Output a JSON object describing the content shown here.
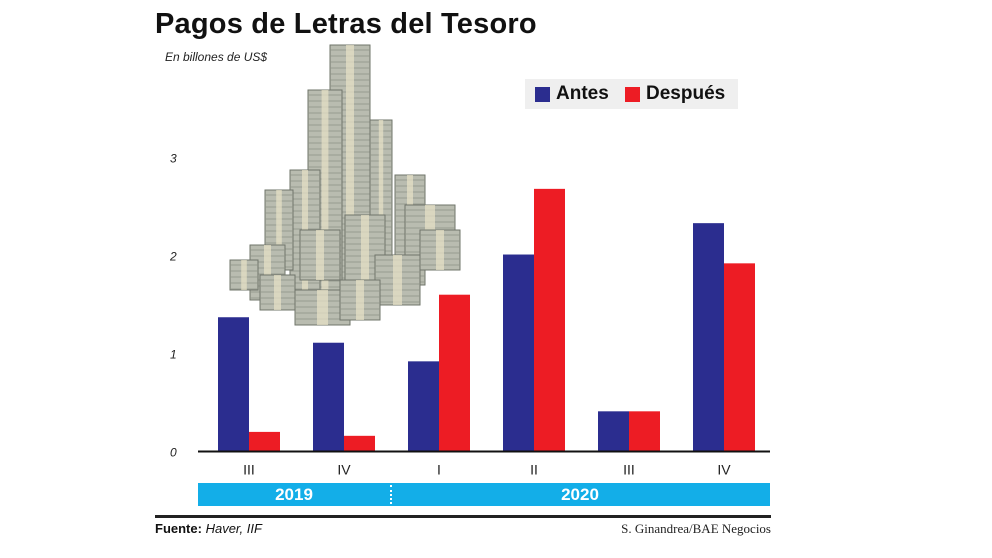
{
  "chart_data": {
    "type": "bar",
    "title": "Pagos de Letras del Tesoro",
    "subtitle": "En billones de US$",
    "categories": [
      "III",
      "IV",
      "I",
      "II",
      "III",
      "IV"
    ],
    "category_groups": [
      {
        "label": "2019",
        "categories": [
          "III",
          "IV"
        ]
      },
      {
        "label": "2020",
        "categories": [
          "I",
          "II",
          "III",
          "IV"
        ]
      }
    ],
    "series": [
      {
        "name": "Antes",
        "color": "#2b2d8f",
        "values": [
          1.37,
          1.11,
          0.92,
          2.01,
          0.41,
          2.33
        ]
      },
      {
        "name": "Después",
        "color": "#ed1c24",
        "values": [
          0.2,
          0.16,
          1.6,
          2.68,
          0.41,
          1.92
        ]
      }
    ],
    "yticks": [
      "0",
      "1",
      "2",
      "3"
    ],
    "ylim": [
      0,
      3.4
    ],
    "grid": false,
    "legend": "top-right",
    "year_band_color": "#13aee8"
  },
  "footer": {
    "source_label": "Fuente:",
    "source_value": "Haver, IIF",
    "credit": "S. Ginandrea/BAE Negocios"
  },
  "decoration": {
    "image": "money-stacks"
  }
}
